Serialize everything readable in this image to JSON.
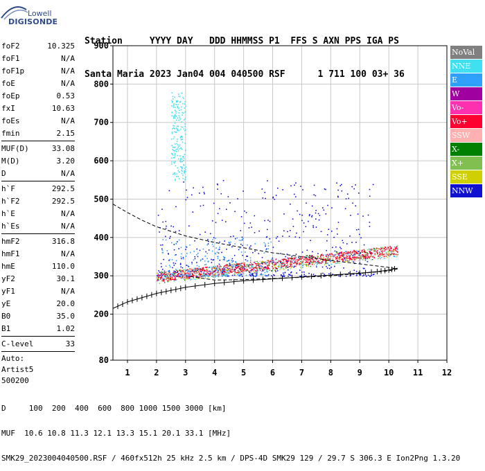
{
  "logo": {
    "line1": "Lowell",
    "line2": "DIGISONDE"
  },
  "header": {
    "line1": "Station     YYYY DAY   DDD HHMMSS P1  FFS S AXN PPS IGA PS",
    "line2": "Santa Maria 2023 Jan04 004 040500 RSF      1 711 100 03+ 36"
  },
  "params": {
    "group1": [
      {
        "label": "foF2",
        "value": "10.325"
      },
      {
        "label": "foF1",
        "value": "N/A"
      },
      {
        "label": "foF1p",
        "value": "N/A"
      },
      {
        "label": "foE",
        "value": "N/A"
      },
      {
        "label": "foEp",
        "value": "0.53"
      },
      {
        "label": "fxI",
        "value": "10.63"
      },
      {
        "label": "foEs",
        "value": "N/A"
      },
      {
        "label": "fmin",
        "value": "2.15"
      }
    ],
    "group2": [
      {
        "label": "MUF(D)",
        "value": "33.08"
      },
      {
        "label": "M(D)",
        "value": "3.20"
      },
      {
        "label": "D",
        "value": "N/A"
      }
    ],
    "group3": [
      {
        "label": "h`F",
        "value": "292.5"
      },
      {
        "label": "h`F2",
        "value": "292.5"
      },
      {
        "label": "h`E",
        "value": "N/A"
      },
      {
        "label": "h`Es",
        "value": "N/A"
      }
    ],
    "group4": [
      {
        "label": "hmF2",
        "value": "316.8"
      },
      {
        "label": "hmF1",
        "value": "N/A"
      },
      {
        "label": "hmE",
        "value": "110.0"
      },
      {
        "label": "yF2",
        "value": "30.1"
      },
      {
        "label": "yF1",
        "value": "N/A"
      },
      {
        "label": "yE",
        "value": "20.0"
      },
      {
        "label": "B0",
        "value": "35.0"
      },
      {
        "label": "B1",
        "value": "1.02"
      }
    ],
    "group5": [
      {
        "label": "C-level",
        "value": "33"
      }
    ],
    "auto": [
      "Auto:",
      "Artist5",
      "500200"
    ]
  },
  "legend": [
    {
      "label": "NoVal",
      "color": "#808080"
    },
    {
      "label": "NNE",
      "color": "#40e0f0"
    },
    {
      "label": "E",
      "color": "#30a0ff"
    },
    {
      "label": "W",
      "color": "#a000a0"
    },
    {
      "label": "Vo-",
      "color": "#ff30b0"
    },
    {
      "label": "Vo+",
      "color": "#ff0030"
    },
    {
      "label": "SSW",
      "color": "#ffb0b0"
    },
    {
      "label": "X-",
      "color": "#008000"
    },
    {
      "label": "X+",
      "color": "#80c050"
    },
    {
      "label": "SSE",
      "color": "#d0d000"
    },
    {
      "label": "NNW",
      "color": "#1010d0"
    }
  ],
  "footer": {
    "line1": "D     100  200  400  600  800 1000 1500 3000 [km]",
    "line2": "MUF  10.6 10.8 11.3 12.1 13.3 15.1 20.1 33.1 [MHz]",
    "line3": "SMK29_2023004040500.RSF / 460fx512h 25 kHz 2.5 km / DPS-4D SMK29 129 / 29.7 S 306.3 E Ion2Png 1.3.20"
  },
  "chart_data": {
    "type": "scatter",
    "title": "",
    "xlabel": "",
    "ylabel": "",
    "xlim": [
      0.5,
      12
    ],
    "ylim": [
      80,
      900
    ],
    "xticks": [
      1,
      2,
      3,
      4,
      5,
      6,
      7,
      8,
      9,
      10,
      11,
      12
    ],
    "yticks": [
      80,
      200,
      300,
      400,
      500,
      600,
      700,
      800,
      900
    ],
    "grid": true,
    "legend_placement": "right",
    "trace_F2_lower": {
      "name": "",
      "x": [
        0.5,
        1.0,
        1.5,
        2.0,
        2.5,
        3.0,
        4.0,
        5.0,
        6.0,
        7.0,
        8.0,
        9.0,
        9.6,
        10.0,
        10.3
      ],
      "y": [
        215,
        232,
        243,
        254,
        262,
        270,
        280,
        287,
        292,
        297,
        302,
        307,
        311,
        315,
        320
      ]
    },
    "profile_F2": {
      "name": "",
      "x": [
        0.5,
        1.0,
        1.5,
        2.0,
        3.0,
        4.0,
        5.0,
        6.0,
        7.0,
        8.0,
        9.0,
        10.0,
        10.3,
        10.0,
        9.0,
        8.0,
        7.0,
        6.0,
        5.0,
        4.0,
        3.0
      ],
      "y": [
        487,
        465,
        445,
        428,
        404,
        387,
        373,
        360,
        350,
        340,
        331,
        322,
        318,
        313,
        306,
        300,
        296,
        293,
        290,
        289,
        300
      ]
    },
    "echo_clusters": [
      {
        "mode": "Vo+",
        "x": [
          2,
          10.3
        ],
        "y": [
          280,
          360
        ],
        "color": "#ff0030"
      },
      {
        "mode": "NNW",
        "x": [
          2,
          9.5
        ],
        "y": [
          300,
          550
        ],
        "color": "#1010d0"
      },
      {
        "mode": "NNE",
        "x": [
          2.5,
          3
        ],
        "y": [
          550,
          780
        ],
        "color": "#40e0f0"
      },
      {
        "mode": "E",
        "x": [
          2,
          6
        ],
        "y": [
          300,
          400
        ],
        "color": "#30a0ff"
      }
    ]
  }
}
